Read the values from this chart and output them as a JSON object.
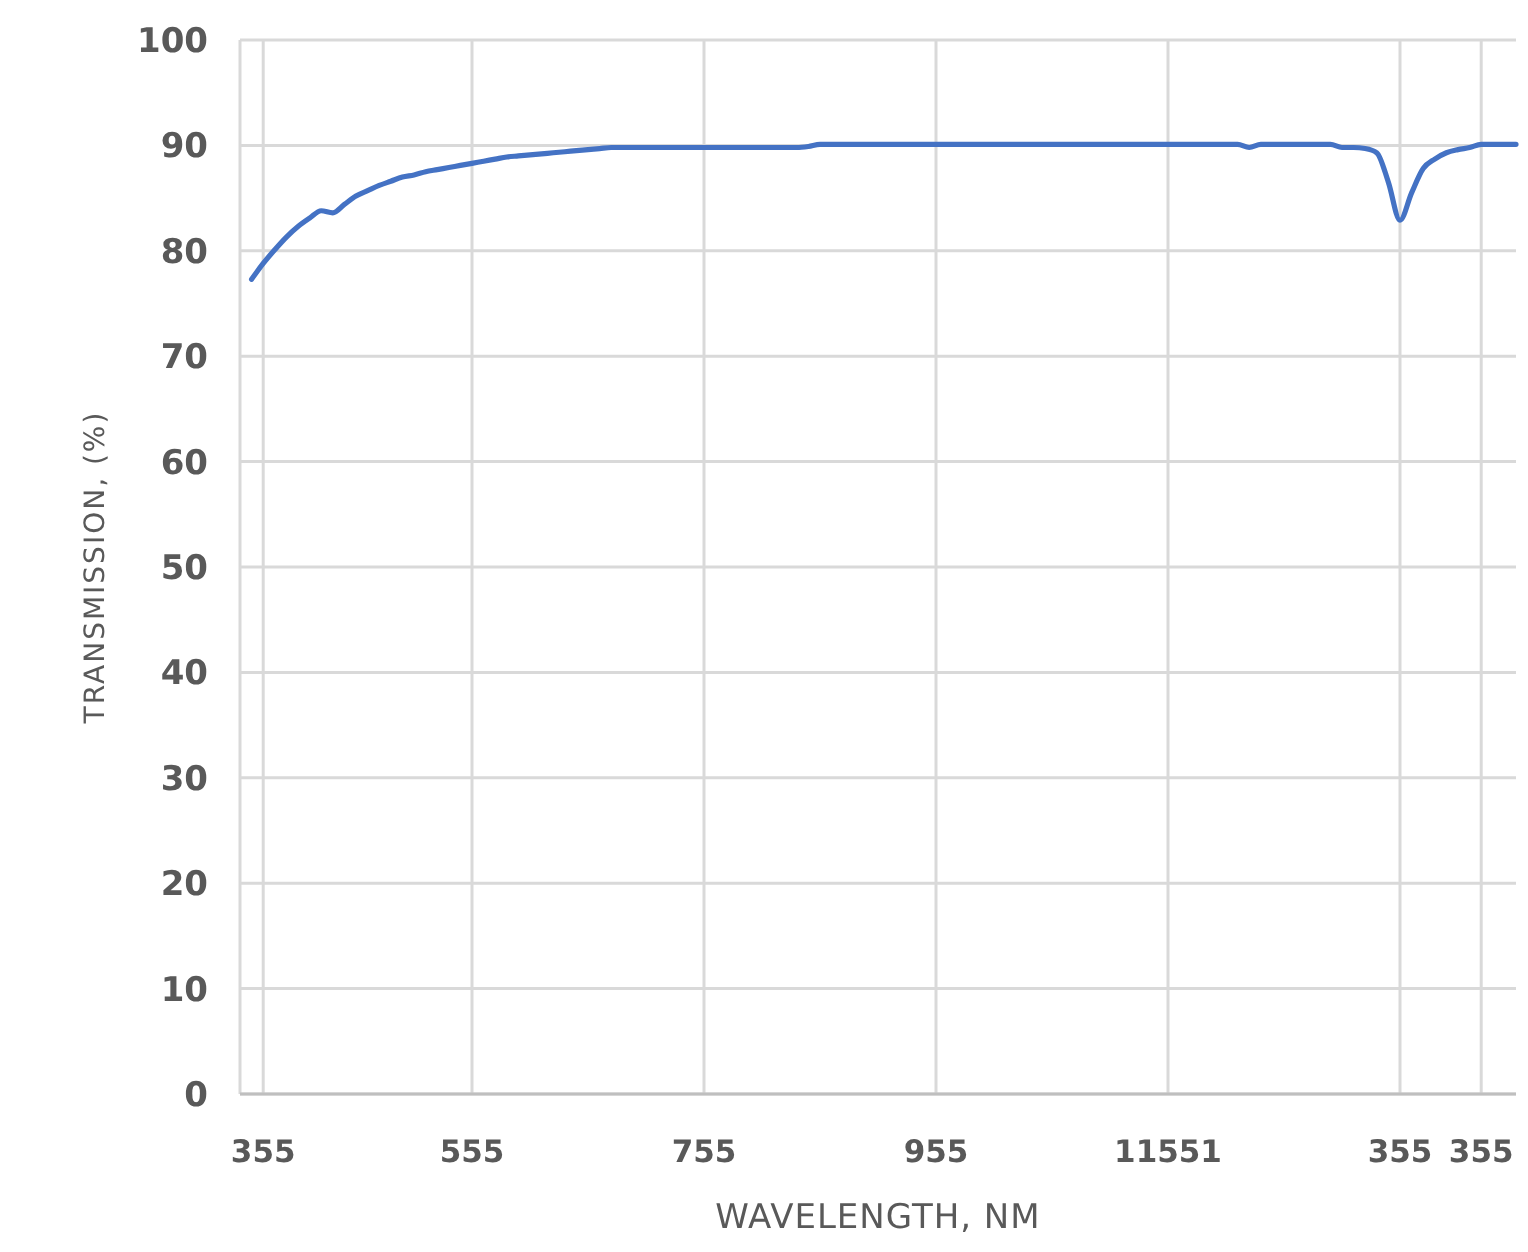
{
  "chart_data": {
    "type": "line",
    "xlabel": "WAVELENGTH, NM",
    "ylabel": "TRANSMISSION, (%)",
    "categories": [
      null,
      null,
      "355",
      null,
      null,
      null,
      null,
      null,
      null,
      null,
      null,
      null,
      null,
      null,
      null,
      null,
      null,
      null,
      null,
      null,
      "555",
      null,
      null,
      null,
      null,
      null,
      null,
      null,
      null,
      null,
      null,
      null,
      null,
      null,
      null,
      null,
      null,
      null,
      null,
      null,
      "755",
      null,
      null,
      null,
      null,
      null,
      null,
      null,
      null,
      null,
      null,
      null,
      null,
      null,
      null,
      null,
      null,
      null,
      null,
      null,
      "955",
      null,
      null,
      null,
      null,
      null,
      null,
      null,
      null,
      null,
      null,
      null,
      null,
      null,
      null,
      null,
      null,
      null,
      null,
      null,
      "11551",
      null,
      null,
      null,
      null,
      null,
      null,
      null,
      null,
      null,
      null,
      null,
      null,
      null,
      null,
      null,
      null,
      null,
      null,
      null,
      "355",
      null,
      null,
      null,
      null,
      null,
      null,
      "355",
      null,
      null,
      null
    ],
    "series": [
      {
        "color": "#4472c4",
        "values": [
          null,
          77.3,
          78.8,
          80.1,
          81.3,
          82.3,
          83.1,
          83.8,
          83.6,
          84.4,
          85.2,
          85.7,
          86.2,
          86.6,
          87.0,
          87.2,
          87.5,
          87.7,
          87.9,
          88.1,
          88.3,
          88.5,
          88.7,
          88.9,
          89.0,
          89.1,
          89.2,
          89.3,
          89.4,
          89.5,
          89.6,
          89.7,
          89.8,
          89.8,
          89.8,
          89.8,
          89.8,
          89.8,
          89.8,
          89.8,
          89.8,
          89.8,
          89.8,
          89.8,
          89.8,
          89.8,
          89.8,
          89.8,
          89.8,
          89.9,
          90.1,
          90.1,
          90.1,
          90.1,
          90.1,
          90.1,
          90.1,
          90.1,
          90.1,
          90.1,
          90.1,
          90.1,
          90.1,
          90.1,
          90.1,
          90.1,
          90.1,
          90.1,
          90.1,
          90.1,
          90.1,
          90.1,
          90.1,
          90.1,
          90.1,
          90.1,
          90.1,
          90.1,
          90.1,
          90.1,
          90.1,
          90.1,
          90.1,
          90.1,
          90.1,
          90.1,
          90.1,
          89.8,
          90.1,
          90.1,
          90.1,
          90.1,
          90.1,
          90.1,
          90.1,
          89.8,
          89.8,
          89.7,
          89.3,
          86.5,
          82.9,
          85.5,
          87.8,
          88.7,
          89.3,
          89.6,
          89.8,
          90.1,
          90.1,
          90.1,
          90.1
        ]
      }
    ],
    "ylim": [
      0,
      100
    ],
    "yticks": [
      0,
      10,
      20,
      30,
      40,
      50,
      60,
      70,
      80,
      90,
      100
    ],
    "grid": true,
    "marker": "none",
    "line_style": "solid"
  }
}
